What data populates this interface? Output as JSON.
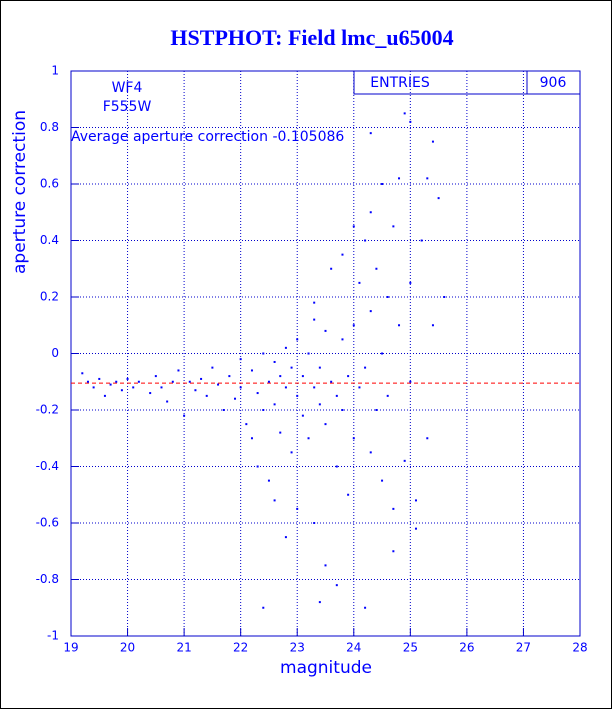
{
  "chart_data": {
    "type": "scatter",
    "title": "HSTPHOT: Field lmc_u65004",
    "xlabel": "magnitude",
    "ylabel": "aperture correction",
    "notes": [
      "WF4",
      "F555W"
    ],
    "average_label": "Average aperture correction",
    "average": -0.105086,
    "average_color": "#ff0000",
    "stats_label": "ENTRIES",
    "entries": 906,
    "color": "#0000ff",
    "grid": true,
    "xlim": [
      19,
      28
    ],
    "xticks": [
      19,
      20,
      21,
      22,
      23,
      24,
      25,
      26,
      27,
      28
    ],
    "ylim": [
      -1,
      1
    ],
    "yticks": [
      -1,
      -0.8,
      -0.6,
      -0.4,
      -0.2,
      0,
      0.2,
      0.4,
      0.6,
      0.8,
      1
    ],
    "x": [
      19.2,
      19.3,
      19.4,
      19.5,
      19.6,
      19.7,
      19.8,
      19.9,
      20.0,
      20.1,
      20.2,
      20.4,
      20.5,
      20.6,
      20.7,
      20.8,
      20.9,
      21.0,
      21.1,
      21.2,
      21.3,
      21.4,
      21.5,
      21.6,
      21.7,
      21.8,
      21.9,
      22.0,
      22.0,
      22.1,
      22.2,
      22.2,
      22.3,
      22.3,
      22.4,
      22.4,
      22.5,
      22.5,
      22.6,
      22.6,
      22.7,
      22.7,
      22.8,
      22.8,
      22.9,
      22.9,
      23.0,
      23.0,
      23.0,
      23.1,
      23.1,
      23.2,
      23.2,
      23.3,
      23.3,
      23.3,
      23.4,
      23.4,
      23.5,
      23.5,
      23.5,
      23.6,
      23.6,
      23.7,
      23.7,
      23.8,
      23.8,
      23.8,
      23.9,
      23.9,
      24.0,
      24.0,
      24.1,
      24.1,
      24.2,
      24.2,
      24.3,
      24.3,
      24.3,
      24.4,
      24.4,
      24.5,
      24.5,
      24.5,
      24.6,
      24.6,
      24.7,
      24.7,
      24.8,
      24.8,
      24.9,
      24.9,
      25.0,
      25.0,
      25.0,
      25.1,
      25.2,
      25.3,
      25.3,
      25.4,
      25.4,
      25.5,
      25.6,
      24.2,
      22.4,
      23.4,
      22.8,
      23.7,
      24.7,
      25.1,
      24.0,
      24.3,
      23.3,
      22.6
    ],
    "values": [
      -0.07,
      -0.1,
      -0.12,
      -0.09,
      -0.15,
      -0.11,
      -0.1,
      -0.13,
      -0.09,
      -0.12,
      -0.1,
      -0.14,
      -0.08,
      -0.12,
      -0.17,
      -0.1,
      -0.06,
      -0.22,
      -0.1,
      -0.13,
      -0.09,
      -0.15,
      -0.05,
      -0.11,
      -0.2,
      -0.08,
      -0.16,
      -0.12,
      -0.02,
      -0.25,
      -0.06,
      -0.3,
      -0.14,
      -0.4,
      0.0,
      -0.2,
      -0.1,
      -0.45,
      -0.03,
      -0.18,
      -0.28,
      -0.08,
      -0.12,
      0.02,
      -0.35,
      -0.05,
      -0.15,
      0.05,
      -0.55,
      -0.22,
      -0.08,
      0.0,
      -0.3,
      -0.12,
      0.12,
      -0.6,
      -0.18,
      -0.05,
      0.08,
      -0.25,
      -0.75,
      -0.1,
      0.3,
      -0.4,
      -0.15,
      0.05,
      -0.2,
      0.35,
      -0.08,
      -0.5,
      0.1,
      -0.3,
      0.25,
      -0.12,
      0.4,
      -0.05,
      -0.35,
      0.15,
      0.5,
      -0.2,
      0.3,
      0.0,
      -0.45,
      0.6,
      0.2,
      -0.15,
      0.45,
      -0.55,
      0.1,
      0.62,
      -0.38,
      0.85,
      0.82,
      -0.1,
      0.25,
      -0.52,
      0.4,
      0.62,
      -0.3,
      0.75,
      0.1,
      0.55,
      0.2,
      -0.9,
      -0.9,
      -0.88,
      -0.65,
      -0.82,
      -0.7,
      -0.62,
      0.45,
      0.78,
      0.18,
      -0.52
    ]
  }
}
